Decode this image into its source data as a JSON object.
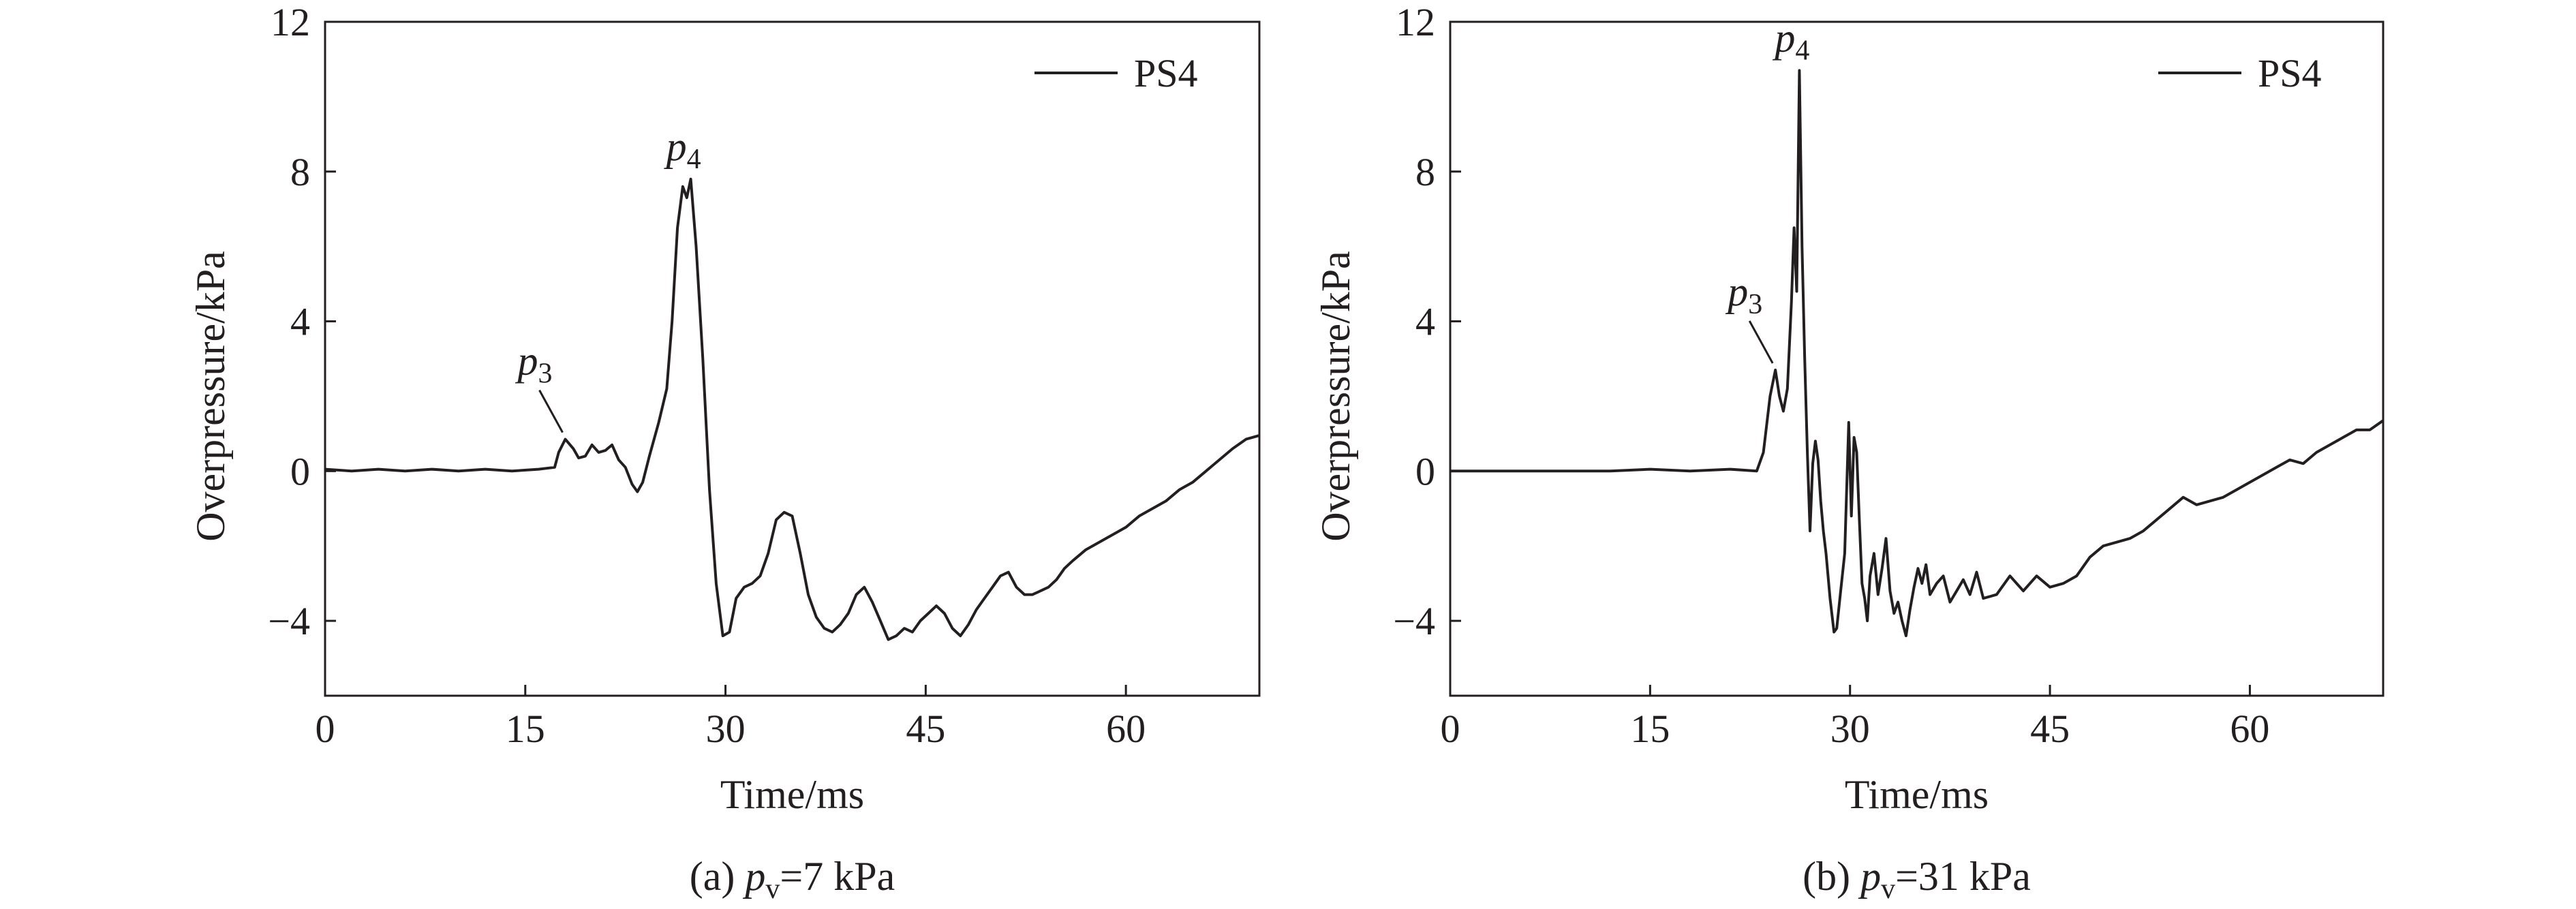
{
  "chart_data": [
    {
      "type": "line",
      "panel_caption": {
        "label": "(a)",
        "var_main": "p",
        "var_sub": "v",
        "value": "=7 kPa"
      },
      "xlabel": "Time/ms",
      "ylabel": "Overpressure/kPa",
      "xlim": [
        0,
        70
      ],
      "ylim": [
        -6,
        12
      ],
      "xticks": [
        0,
        15,
        30,
        45,
        60
      ],
      "yticks": [
        -4,
        0,
        4,
        8,
        12
      ],
      "ytick_labels": [
        "−4",
        "0",
        "4",
        "8",
        "12"
      ],
      "grid": false,
      "legend_position": "top-right",
      "series": [
        {
          "name": "PS4",
          "color": "#231f20",
          "x": [
            0,
            2,
            4,
            6,
            8,
            10,
            12,
            14,
            16,
            17.2,
            17.5,
            18,
            18.6,
            19,
            19.5,
            20,
            20.5,
            21,
            21.5,
            22,
            22.5,
            23,
            23.4,
            23.8,
            24.3,
            25,
            25.6,
            26,
            26.4,
            26.8,
            27.1,
            27.4,
            27.8,
            28.3,
            28.8,
            29.3,
            29.8,
            30.3,
            30.8,
            31.4,
            32,
            32.6,
            33.2,
            33.8,
            34.4,
            35,
            35.6,
            36.2,
            36.8,
            37.4,
            38,
            38.6,
            39.2,
            39.8,
            40.4,
            41,
            41.6,
            42.2,
            42.8,
            43.4,
            44,
            44.6,
            45.2,
            45.8,
            46.4,
            47,
            47.6,
            48.2,
            48.8,
            49.4,
            50,
            50.6,
            51.2,
            51.8,
            52.4,
            53,
            53.6,
            54.2,
            54.8,
            55.4,
            56,
            57,
            58,
            59,
            60,
            61,
            62,
            63,
            64,
            65,
            66,
            67,
            68,
            69,
            70
          ],
          "y": [
            0.05,
            0.0,
            0.05,
            0.0,
            0.05,
            0.0,
            0.05,
            0.0,
            0.05,
            0.1,
            0.5,
            0.85,
            0.6,
            0.35,
            0.4,
            0.7,
            0.5,
            0.55,
            0.7,
            0.3,
            0.1,
            -0.35,
            -0.55,
            -0.3,
            0.4,
            1.3,
            2.2,
            4.0,
            6.5,
            7.6,
            7.3,
            7.8,
            6.0,
            3.0,
            -0.5,
            -3.0,
            -4.4,
            -4.3,
            -3.4,
            -3.1,
            -3.0,
            -2.8,
            -2.2,
            -1.3,
            -1.1,
            -1.2,
            -2.2,
            -3.3,
            -3.9,
            -4.2,
            -4.3,
            -4.1,
            -3.8,
            -3.3,
            -3.1,
            -3.5,
            -4.0,
            -4.5,
            -4.4,
            -4.2,
            -4.3,
            -4.0,
            -3.8,
            -3.6,
            -3.8,
            -4.2,
            -4.4,
            -4.1,
            -3.7,
            -3.4,
            -3.1,
            -2.8,
            -2.7,
            -3.1,
            -3.3,
            -3.3,
            -3.2,
            -3.1,
            -2.9,
            -2.6,
            -2.4,
            -2.1,
            -1.9,
            -1.7,
            -1.5,
            -1.2,
            -1.0,
            -0.8,
            -0.5,
            -0.3,
            -0.0,
            0.3,
            0.6,
            0.85,
            0.95
          ]
        }
      ],
      "annotations": [
        {
          "main": "p",
          "sub": "3",
          "x": 18.0,
          "y": 0.85
        },
        {
          "main": "p",
          "sub": "4",
          "x": 27.4,
          "y": 7.8
        }
      ]
    },
    {
      "type": "line",
      "panel_caption": {
        "label": "(b)",
        "var_main": "p",
        "var_sub": "v",
        "value": "=31 kPa"
      },
      "xlabel": "Time/ms",
      "ylabel": "Overpressure/kPa",
      "xlim": [
        0,
        70
      ],
      "ylim": [
        -6,
        12
      ],
      "xticks": [
        0,
        15,
        30,
        45,
        60
      ],
      "yticks": [
        -4,
        0,
        4,
        8,
        12
      ],
      "ytick_labels": [
        "−4",
        "0",
        "4",
        "8",
        "12"
      ],
      "grid": false,
      "legend_position": "top-right",
      "series": [
        {
          "name": "PS4",
          "color": "#231f20",
          "x": [
            0,
            3,
            6,
            9,
            12,
            15,
            18,
            21,
            23,
            23.5,
            24,
            24.4,
            24.7,
            25,
            25.3,
            25.6,
            25.8,
            26,
            26.2,
            26.4,
            26.6,
            26.8,
            27,
            27.2,
            27.4,
            27.6,
            27.8,
            28,
            28.2,
            28.5,
            28.8,
            29,
            29.3,
            29.6,
            29.9,
            30.1,
            30.3,
            30.5,
            30.7,
            30.9,
            31.1,
            31.3,
            31.5,
            31.8,
            32.1,
            32.4,
            32.7,
            33,
            33.3,
            33.6,
            33.9,
            34.2,
            34.5,
            34.8,
            35.1,
            35.4,
            35.7,
            36,
            36.5,
            37,
            37.5,
            38,
            38.5,
            39,
            39.5,
            40,
            41,
            42,
            43,
            44,
            45,
            46,
            47,
            48,
            49,
            50,
            51,
            52,
            53,
            54,
            55,
            56,
            57,
            58,
            59,
            60,
            61,
            62,
            63,
            64,
            65,
            66,
            67,
            68,
            69,
            70
          ],
          "y": [
            0.0,
            0.0,
            0.0,
            0.0,
            0.0,
            0.05,
            0.0,
            0.05,
            0.0,
            0.5,
            2.0,
            2.7,
            2.0,
            1.6,
            2.2,
            4.5,
            6.5,
            4.8,
            10.7,
            6.0,
            3.0,
            0.5,
            -1.6,
            0.2,
            0.8,
            0.3,
            -0.8,
            -1.6,
            -2.2,
            -3.4,
            -4.3,
            -4.2,
            -3.2,
            -2.2,
            1.3,
            -1.2,
            0.9,
            0.5,
            -1.3,
            -3.0,
            -3.4,
            -4.0,
            -2.8,
            -2.2,
            -3.3,
            -2.6,
            -1.8,
            -3.2,
            -3.8,
            -3.5,
            -4.0,
            -4.4,
            -3.7,
            -3.1,
            -2.6,
            -3.0,
            -2.5,
            -3.3,
            -3.0,
            -2.8,
            -3.5,
            -3.2,
            -2.9,
            -3.3,
            -2.7,
            -3.4,
            -3.3,
            -2.8,
            -3.2,
            -2.8,
            -3.1,
            -3.0,
            -2.8,
            -2.3,
            -2.0,
            -1.9,
            -1.8,
            -1.6,
            -1.3,
            -1.0,
            -0.7,
            -0.9,
            -0.8,
            -0.7,
            -0.5,
            -0.3,
            -0.1,
            0.1,
            0.3,
            0.2,
            0.5,
            0.7,
            0.9,
            1.1,
            1.1,
            1.35
          ]
        }
      ],
      "annotations": [
        {
          "main": "p",
          "sub": "3",
          "x": 24.4,
          "y": 2.7
        },
        {
          "main": "p",
          "sub": "4",
          "x": 26.2,
          "y": 10.7
        }
      ]
    }
  ]
}
